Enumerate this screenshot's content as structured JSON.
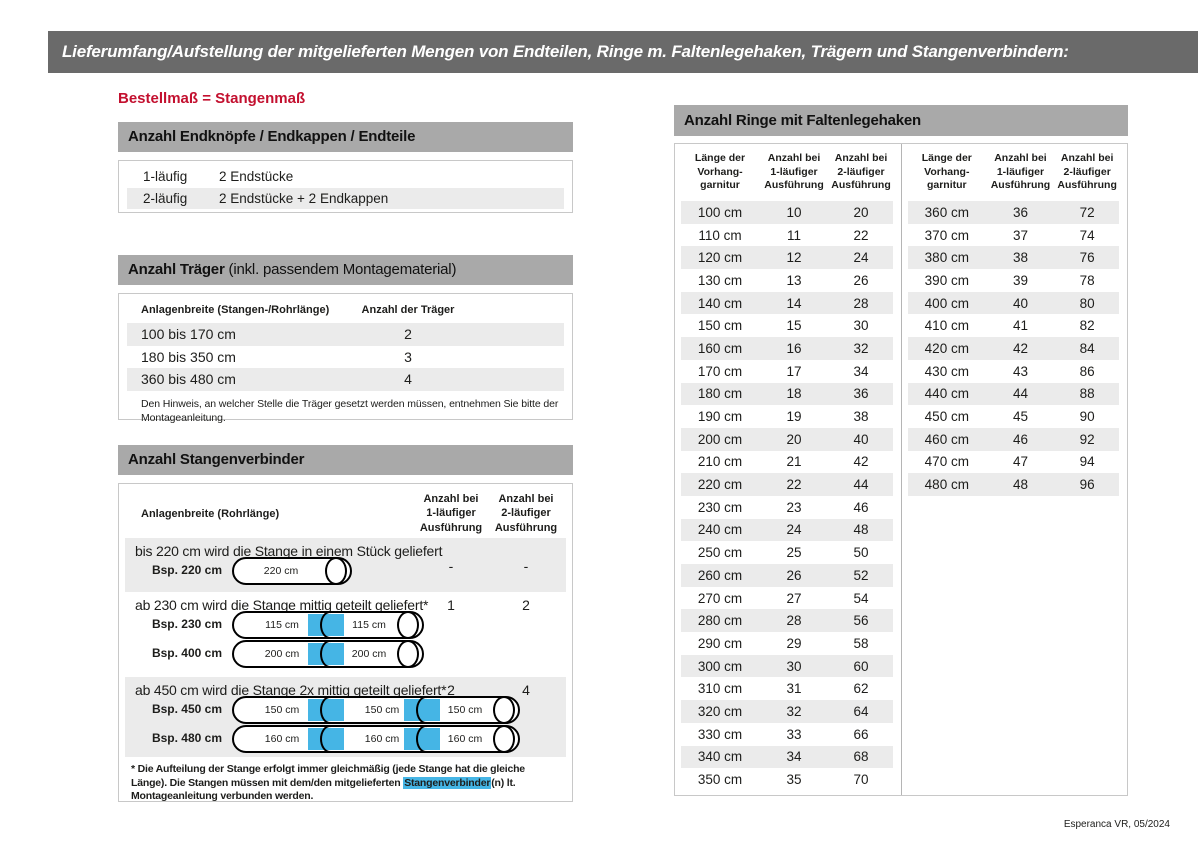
{
  "page": {
    "title": "Lieferumfang/Aufstellung der mitgelieferten Mengen von Endteilen, Ringe m. Faltenlegehaken, Trägern und Stangenverbindern:",
    "subtitle": "Bestellmaß = Stangenmaß",
    "footer": "Esperanca VR, 05/2024"
  },
  "colors": {
    "title_bar_gray": "#6a6a6a",
    "section_bar_gray": "#a9a9a9",
    "row_stripe_gray": "#ebebeb",
    "connector_blue": "#45b5e5",
    "accent_red": "#c3102f"
  },
  "end_pieces": {
    "header": "Anzahl Endknöpfe / Endkappen / Endteile",
    "rows": [
      {
        "type": "1-läufig",
        "value": "2 Endstücke"
      },
      {
        "type": "2-läufig",
        "value": "2 Endstücke + 2 Endkappen"
      }
    ]
  },
  "traeger": {
    "header_bold": "Anzahl Träger",
    "header_suffix": " (inkl. passendem Montagematerial)",
    "col1": "Anlagenbreite (Stangen-/Rohrlänge)",
    "col2": "Anzahl der Träger",
    "rows": [
      {
        "range": "100 bis 170 cm",
        "count": "2"
      },
      {
        "range": "180 bis 350 cm",
        "count": "3"
      },
      {
        "range": "360 bis 480 cm",
        "count": "4"
      }
    ],
    "note": "Den Hinweis, an welcher Stelle die Träger gesetzt werden müssen, entnehmen Sie bitte der Montageanleitung."
  },
  "verbinder": {
    "header": "Anzahl Stangenverbinder",
    "col1": "Anlagenbreite (Rohrlänge)",
    "col2": "Anzahl bei\n1-läufiger\nAusführung",
    "col3": "Anzahl bei\n2-läufiger\nAusführung",
    "rows": [
      {
        "text": "bis 220 cm wird die Stange in einem Stück geliefert",
        "v1": "-",
        "v2": "-",
        "rods": [
          {
            "label": "Bsp. 220 cm",
            "segments": [
              "220 cm"
            ]
          }
        ]
      },
      {
        "text": "ab 230 cm wird die Stange mittig geteilt geliefert*",
        "v1": "1",
        "v2": "2",
        "rods": [
          {
            "label": "Bsp. 230 cm",
            "segments": [
              "115 cm",
              "115 cm"
            ]
          },
          {
            "label": "Bsp. 400 cm",
            "segments": [
              "200 cm",
              "200 cm"
            ]
          }
        ]
      },
      {
        "text": "ab 450 cm wird die Stange 2x mittig geteilt geliefert*",
        "v1": "2",
        "v2": "4",
        "rods": [
          {
            "label": "Bsp. 450 cm",
            "segments": [
              "150 cm",
              "150 cm",
              "150 cm"
            ]
          },
          {
            "label": "Bsp. 480 cm",
            "segments": [
              "160 cm",
              "160 cm",
              "160 cm"
            ]
          }
        ]
      }
    ],
    "footnote_pre": "* Die Aufteilung der Stange erfolgt immer gleichmäßig (jede Stange hat die gleiche Länge). Die Stangen müssen mit dem/den mitgelieferten ",
    "footnote_highlight": "Stangenverbinder",
    "footnote_post": "(n) lt. Montageanleitung verbunden werden."
  },
  "ringe": {
    "header": "Anzahl Ringe mit Faltenlegehaken",
    "col_headers": [
      "Länge der\nVorhang-\ngarnitur",
      "Anzahl bei\n1-läufiger\nAusführung",
      "Anzahl bei\n2-läufiger\nAusführung"
    ],
    "table1": [
      [
        "100 cm",
        "10",
        "20"
      ],
      [
        "110 cm",
        "11",
        "22"
      ],
      [
        "120 cm",
        "12",
        "24"
      ],
      [
        "130 cm",
        "13",
        "26"
      ],
      [
        "140 cm",
        "14",
        "28"
      ],
      [
        "150 cm",
        "15",
        "30"
      ],
      [
        "160 cm",
        "16",
        "32"
      ],
      [
        "170 cm",
        "17",
        "34"
      ],
      [
        "180 cm",
        "18",
        "36"
      ],
      [
        "190 cm",
        "19",
        "38"
      ],
      [
        "200 cm",
        "20",
        "40"
      ],
      [
        "210 cm",
        "21",
        "42"
      ],
      [
        "220 cm",
        "22",
        "44"
      ],
      [
        "230 cm",
        "23",
        "46"
      ],
      [
        "240 cm",
        "24",
        "48"
      ],
      [
        "250 cm",
        "25",
        "50"
      ],
      [
        "260 cm",
        "26",
        "52"
      ],
      [
        "270 cm",
        "27",
        "54"
      ],
      [
        "280 cm",
        "28",
        "56"
      ],
      [
        "290 cm",
        "29",
        "58"
      ],
      [
        "300 cm",
        "30",
        "60"
      ],
      [
        "310 cm",
        "31",
        "62"
      ],
      [
        "320 cm",
        "32",
        "64"
      ],
      [
        "330 cm",
        "33",
        "66"
      ],
      [
        "340 cm",
        "34",
        "68"
      ],
      [
        "350 cm",
        "35",
        "70"
      ]
    ],
    "table2": [
      [
        "360 cm",
        "36",
        "72"
      ],
      [
        "370 cm",
        "37",
        "74"
      ],
      [
        "380 cm",
        "38",
        "76"
      ],
      [
        "390 cm",
        "39",
        "78"
      ],
      [
        "400 cm",
        "40",
        "80"
      ],
      [
        "410 cm",
        "41",
        "82"
      ],
      [
        "420 cm",
        "42",
        "84"
      ],
      [
        "430 cm",
        "43",
        "86"
      ],
      [
        "440 cm",
        "44",
        "88"
      ],
      [
        "450 cm",
        "45",
        "90"
      ],
      [
        "460 cm",
        "46",
        "92"
      ],
      [
        "470 cm",
        "47",
        "94"
      ],
      [
        "480 cm",
        "48",
        "96"
      ]
    ]
  }
}
